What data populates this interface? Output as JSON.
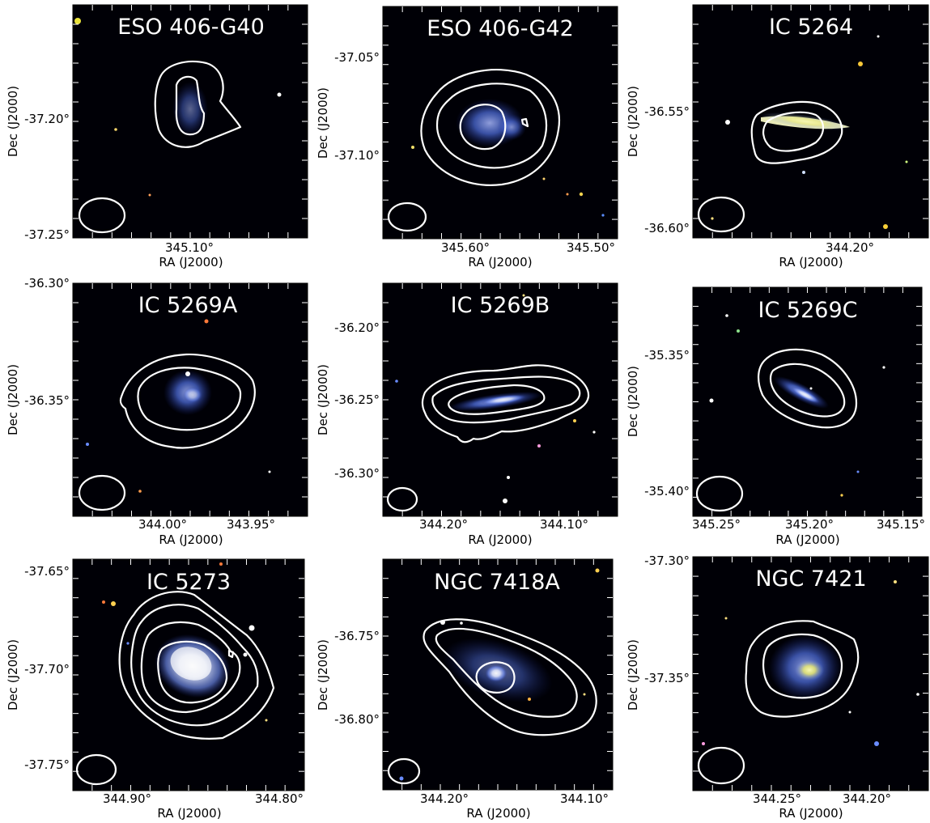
{
  "figure": {
    "x_axis_label": "RA (J2000)",
    "y_axis_label": "Dec (J2000)",
    "colors": {
      "background": "#000006",
      "contour": "#ffffff",
      "galaxy_blue": "#5a7ae8",
      "galaxy_core": "#f4f4ff",
      "bulge_yellow": "#f2f07a"
    },
    "panels": [
      {
        "id": "eso-406-g40",
        "title": "ESO 406-G40",
        "x_ticks": [
          "345.10°"
        ],
        "y_ticks": [
          "-37.20°",
          "-37.25°"
        ]
      },
      {
        "id": "eso-406-g42",
        "title": "ESO 406-G42",
        "x_ticks": [
          "345.60°",
          "345.50°"
        ],
        "y_ticks": [
          "-37.05°",
          "-37.10°"
        ]
      },
      {
        "id": "ic-5264",
        "title": "IC 5264",
        "x_ticks": [
          "344.20°"
        ],
        "y_ticks": [
          "-36.55°",
          "-36.60°"
        ]
      },
      {
        "id": "ic-5269a",
        "title": "IC 5269A",
        "x_ticks": [
          "344.00°",
          "343.95°"
        ],
        "y_ticks": [
          "-36.30°",
          "-36.35°"
        ]
      },
      {
        "id": "ic-5269b",
        "title": "IC 5269B",
        "x_ticks": [
          "344.20°",
          "344.10°"
        ],
        "y_ticks": [
          "-36.20°",
          "-36.25°",
          "-36.30°"
        ]
      },
      {
        "id": "ic-5269c",
        "title": "IC 5269C",
        "x_ticks": [
          "345.25°",
          "345.20°",
          "345.15°"
        ],
        "y_ticks": [
          "-35.35°",
          "-35.40°"
        ]
      },
      {
        "id": "ic-5273",
        "title": "IC 5273",
        "x_ticks": [
          "344.90°",
          "344.80°"
        ],
        "y_ticks": [
          "-37.65°",
          "-37.70°",
          "-37.75°"
        ]
      },
      {
        "id": "ngc-7418a",
        "title": "NGC 7418A",
        "x_ticks": [
          "344.20°",
          "344.10°"
        ],
        "y_ticks": [
          "-36.75°",
          "-36.80°"
        ]
      },
      {
        "id": "ngc-7421",
        "title": "NGC 7421",
        "x_ticks": [
          "344.25°",
          "344.20°"
        ],
        "y_ticks": [
          "-37.30°",
          "-37.35°"
        ]
      }
    ]
  }
}
